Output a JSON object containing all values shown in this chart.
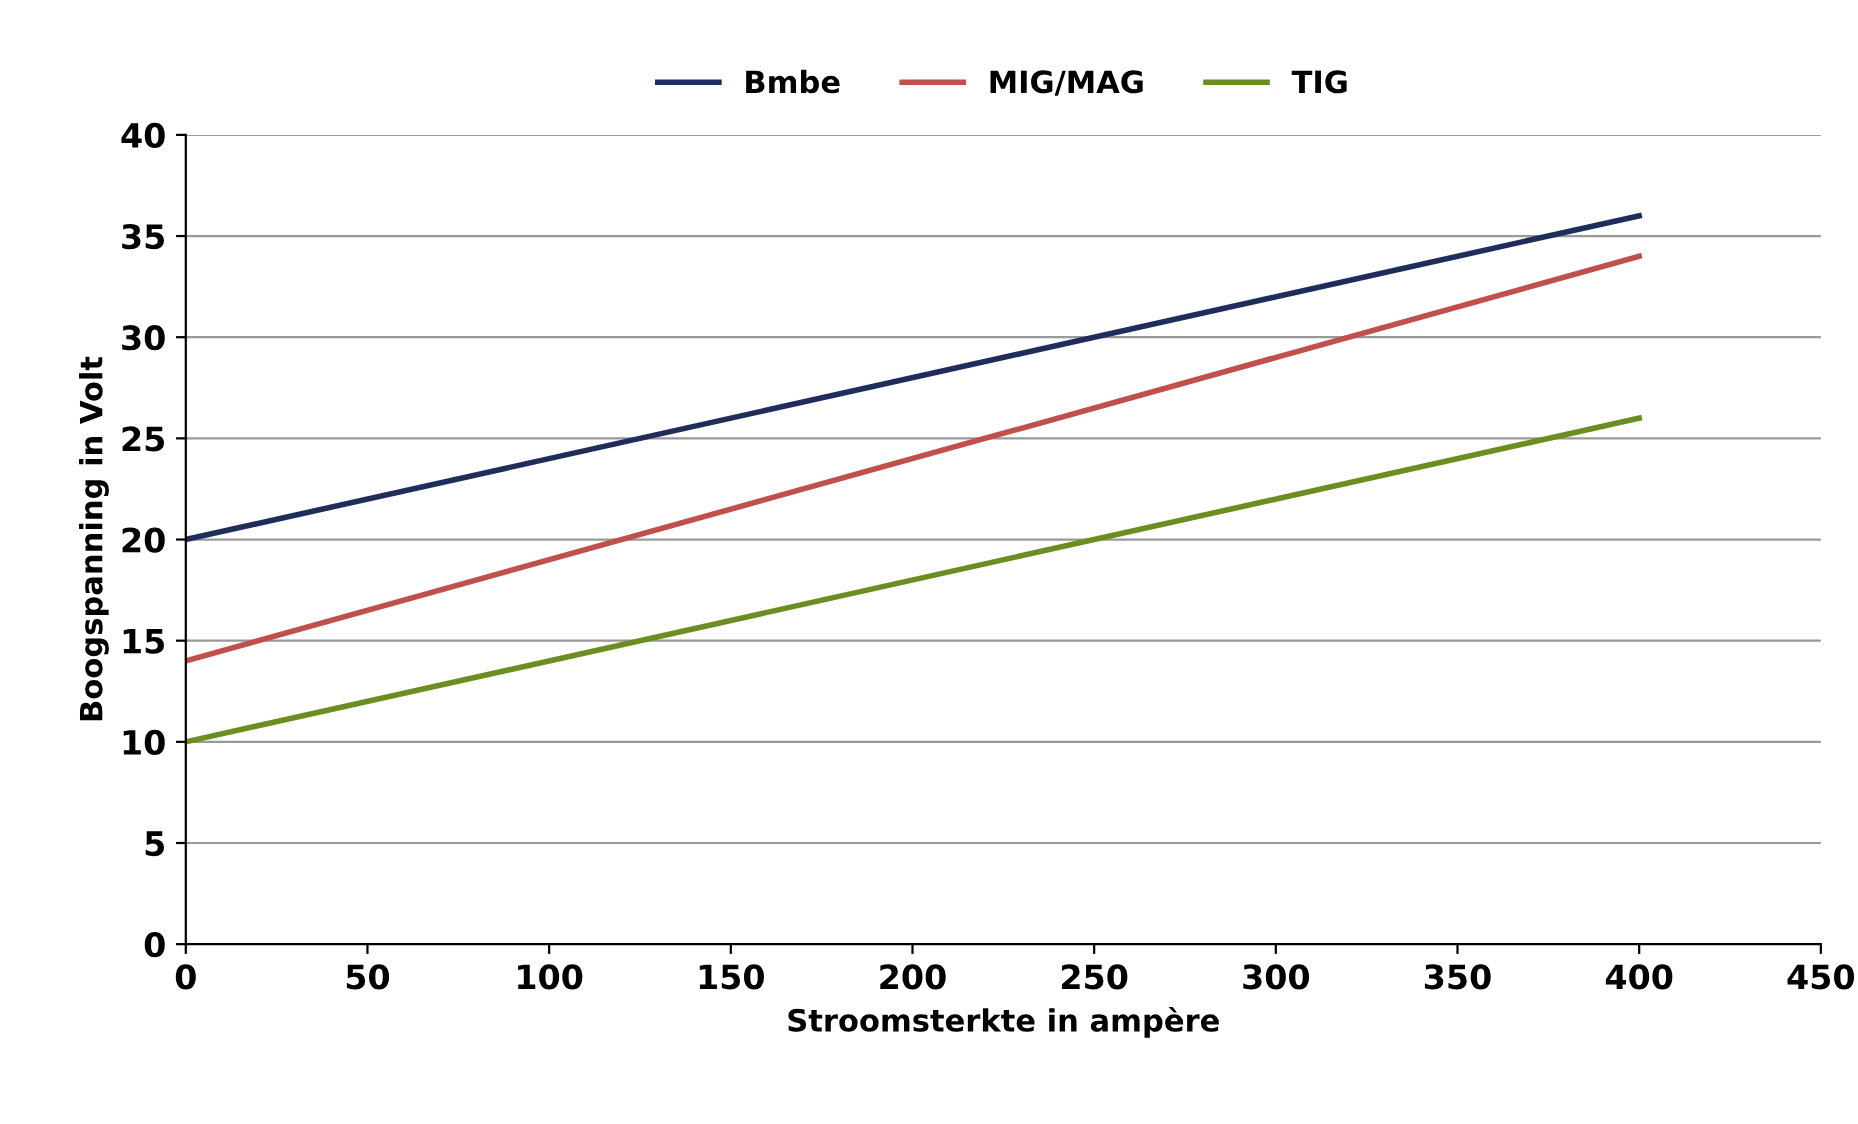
{
  "chart_data": {
    "type": "line",
    "xlabel": "Stroomsterkte in ampère",
    "ylabel": "Boogspanning in Volt",
    "x": [
      0,
      400
    ],
    "series": [
      {
        "name": "Bmbe",
        "color": "#1f2d5a",
        "values": [
          20,
          36
        ]
      },
      {
        "name": "MIG/MAG",
        "color": "#c0504d",
        "values": [
          14,
          34
        ]
      },
      {
        "name": "TIG",
        "color": "#6b8e23",
        "values": [
          10,
          26
        ]
      }
    ],
    "xlim": [
      0,
      450
    ],
    "xticks": [
      0,
      50,
      100,
      150,
      200,
      250,
      300,
      350,
      400,
      450
    ],
    "ylim": [
      0,
      40
    ],
    "yticks": [
      0,
      5,
      10,
      15,
      20,
      25,
      30,
      35,
      40
    ],
    "grid": "y",
    "legend": "top",
    "marker": "none",
    "line_style": "solid"
  }
}
